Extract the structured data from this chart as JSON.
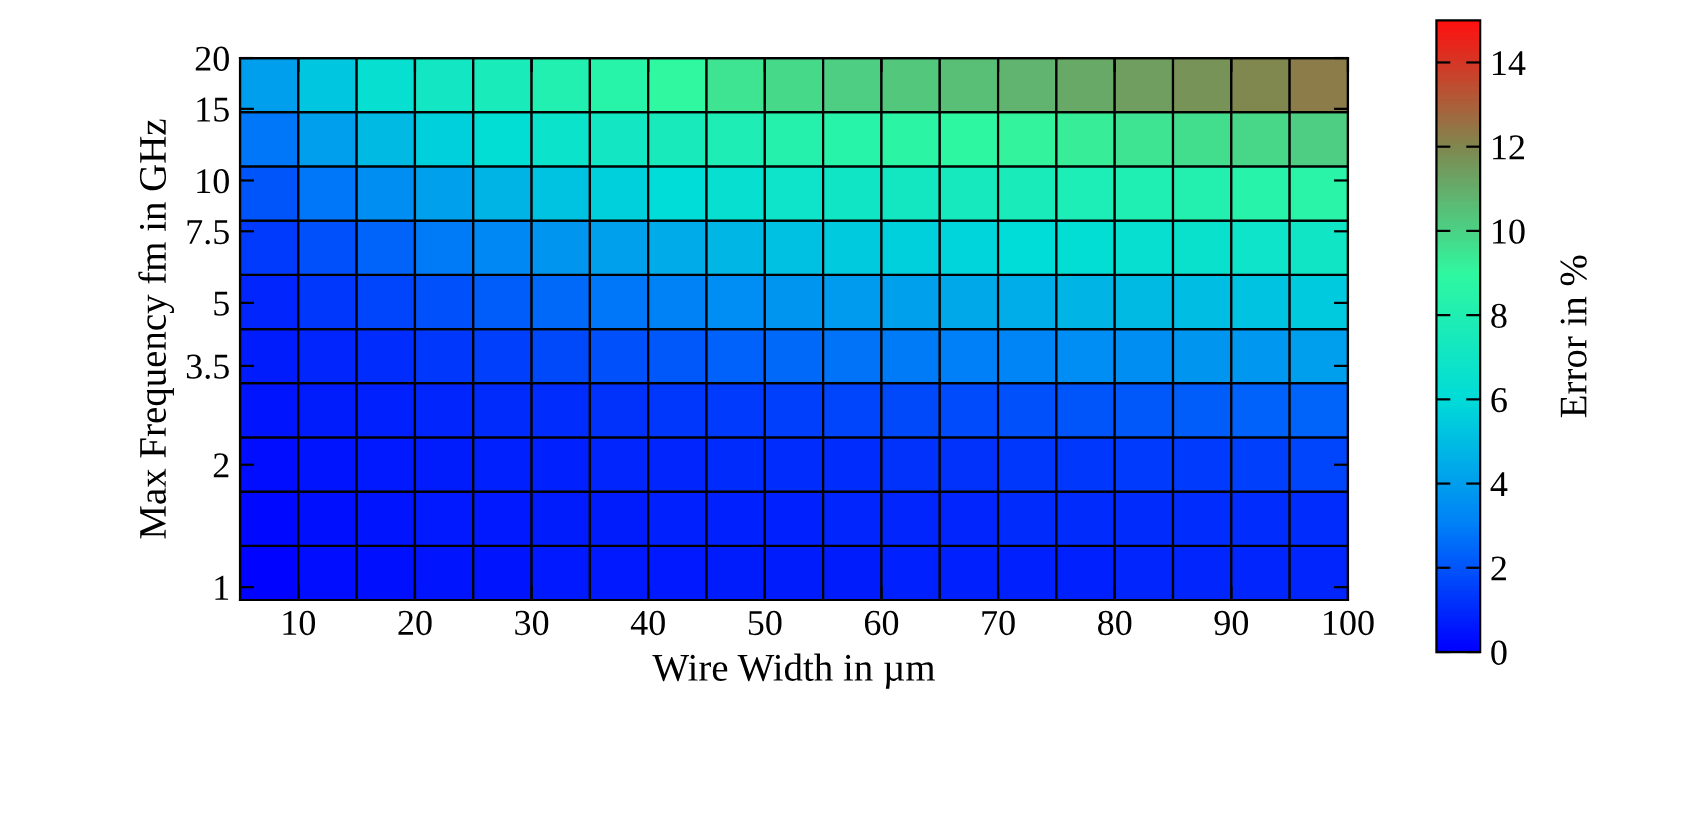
{
  "chart_data": {
    "type": "heatmap",
    "xlabel": "Wire Width in µm",
    "ylabel": "Max Frequency fm in GHz",
    "clabel": "Error in %",
    "cells": [
      [
        4.0,
        5.3,
        6.4,
        7.1,
        7.6,
        8.1,
        8.5,
        9.0,
        9.5,
        9.8,
        10.1,
        10.3,
        10.5,
        10.8,
        11.1,
        11.4,
        11.7,
        12.0,
        12.3
      ],
      [
        2.8,
        4.0,
        4.9,
        5.6,
        6.2,
        6.7,
        7.1,
        7.5,
        7.9,
        8.3,
        8.5,
        8.7,
        8.9,
        9.1,
        9.3,
        9.5,
        9.7,
        9.9,
        10.1
      ],
      [
        2.0,
        2.8,
        3.5,
        4.1,
        4.7,
        5.2,
        5.6,
        6.0,
        6.4,
        6.8,
        7.0,
        7.2,
        7.4,
        7.6,
        7.8,
        8.0,
        8.2,
        8.4,
        8.6
      ],
      [
        1.4,
        1.9,
        2.4,
        2.9,
        3.3,
        3.7,
        4.1,
        4.4,
        4.8,
        5.1,
        5.4,
        5.6,
        5.8,
        6.0,
        6.2,
        6.4,
        6.6,
        6.8,
        7.0
      ],
      [
        0.9,
        1.3,
        1.6,
        1.9,
        2.2,
        2.5,
        2.8,
        3.1,
        3.4,
        3.7,
        3.9,
        4.1,
        4.3,
        4.5,
        4.7,
        4.9,
        5.0,
        5.2,
        5.4
      ],
      [
        0.7,
        0.9,
        1.1,
        1.3,
        1.5,
        1.7,
        1.9,
        2.1,
        2.3,
        2.5,
        2.7,
        2.9,
        3.0,
        3.2,
        3.4,
        3.5,
        3.7,
        3.8,
        4.0
      ],
      [
        0.5,
        0.7,
        0.8,
        0.9,
        1.0,
        1.1,
        1.2,
        1.3,
        1.4,
        1.5,
        1.6,
        1.7,
        1.8,
        1.9,
        2.0,
        2.1,
        2.2,
        2.3,
        2.4
      ],
      [
        0.3,
        0.5,
        0.6,
        0.7,
        0.8,
        0.8,
        0.9,
        0.9,
        1.0,
        1.1,
        1.1,
        1.2,
        1.2,
        1.3,
        1.3,
        1.4,
        1.4,
        1.5,
        1.6
      ],
      [
        0.2,
        0.4,
        0.5,
        0.6,
        0.6,
        0.7,
        0.7,
        0.8,
        0.8,
        0.8,
        0.9,
        0.9,
        0.9,
        1.0,
        1.0,
        1.0,
        1.1,
        1.1,
        1.1
      ],
      [
        0.1,
        0.3,
        0.4,
        0.5,
        0.5,
        0.6,
        0.6,
        0.6,
        0.7,
        0.7,
        0.7,
        0.8,
        0.8,
        0.8,
        0.8,
        0.9,
        0.9,
        0.9,
        0.9
      ]
    ],
    "colors": [
      "#0000ff",
      "#0080f8",
      "#00dcd8",
      "#30f8a0",
      "#808850",
      "#ff1010"
    ],
    "clim": [
      0,
      15
    ],
    "cticks": [
      0,
      2,
      4,
      6,
      8,
      10,
      12,
      14
    ],
    "log": "y",
    "xlim": [
      5,
      100
    ],
    "xticks": [
      10,
      20,
      30,
      40,
      50,
      60,
      70,
      80,
      90,
      100
    ],
    "ylim": [
      0.93,
      20
    ],
    "yticks": [
      1,
      2,
      3.5,
      5,
      7.5,
      10,
      15,
      20
    ],
    "grid": false
  }
}
